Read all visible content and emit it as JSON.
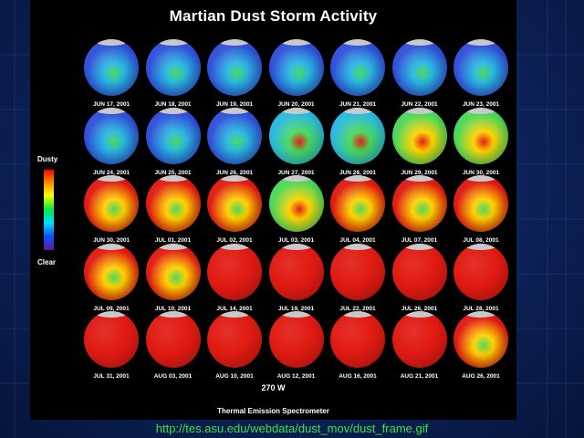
{
  "title": "Martian Dust Storm Activity",
  "legend": {
    "top": "Dusty",
    "bottom": "Clear"
  },
  "longitude": "270 W",
  "instrument": "Thermal Emission Spectrometer",
  "url": "http://tes.asu.edu/webdata/dust_mov/dust_frame.gif",
  "colors": {
    "clear": "#2f4fd8",
    "low": "#28b8e0",
    "mid": "#49d85a",
    "high": "#ffd200",
    "dusty": "#e01a12",
    "url_text": "#39e24b"
  },
  "globes": [
    {
      "date": "JUN 17, 2001",
      "dust": 0.08
    },
    {
      "date": "JUN 18, 2001",
      "dust": 0.09
    },
    {
      "date": "JUN 19, 2001",
      "dust": 0.09
    },
    {
      "date": "JUN 20, 2001",
      "dust": 0.1
    },
    {
      "date": "JUN 21, 2001",
      "dust": 0.1
    },
    {
      "date": "JUN 22, 2001",
      "dust": 0.11
    },
    {
      "date": "JUN 23, 2001",
      "dust": 0.12
    },
    {
      "date": "JUN 24, 2001",
      "dust": 0.12
    },
    {
      "date": "JUN 25, 2001",
      "dust": 0.14
    },
    {
      "date": "JUN 26, 2001",
      "dust": 0.15
    },
    {
      "date": "JUN 27, 2001",
      "dust": 0.24
    },
    {
      "date": "JUN 28, 2001",
      "dust": 0.4
    },
    {
      "date": "JUN 29, 2001",
      "dust": 0.52
    },
    {
      "date": "JUN 30, 2001",
      "dust": 0.6
    },
    {
      "date": "JUN 30, 2001",
      "dust": 0.72
    },
    {
      "date": "JUL 01, 2001",
      "dust": 0.76
    },
    {
      "date": "JUL 02, 2001",
      "dust": 0.7
    },
    {
      "date": "JUL 03, 2001",
      "dust": 0.66
    },
    {
      "date": "JUL 04, 2001",
      "dust": 0.78
    },
    {
      "date": "JUL 07, 2001",
      "dust": 0.76
    },
    {
      "date": "JUL 08, 2001",
      "dust": 0.8
    },
    {
      "date": "JUL 09, 2001",
      "dust": 0.86
    },
    {
      "date": "JUL 10, 2001",
      "dust": 0.84
    },
    {
      "date": "JUL 14, 2001",
      "dust": 0.93
    },
    {
      "date": "JUL 19, 2001",
      "dust": 0.95
    },
    {
      "date": "JUL 22, 2001",
      "dust": 0.95
    },
    {
      "date": "JUL 26, 2001",
      "dust": 0.95
    },
    {
      "date": "JUL 28, 2001",
      "dust": 0.96
    },
    {
      "date": "JUL 31, 2001",
      "dust": 0.97
    },
    {
      "date": "AUG 03, 2001",
      "dust": 0.96
    },
    {
      "date": "AUG 10, 2001",
      "dust": 0.96
    },
    {
      "date": "AUG 12, 2001",
      "dust": 0.96
    },
    {
      "date": "AUG 16, 2001",
      "dust": 0.97
    },
    {
      "date": "AUG 21, 2001",
      "dust": 0.97
    },
    {
      "date": "AUG 26, 2001",
      "dust": 0.82
    }
  ]
}
